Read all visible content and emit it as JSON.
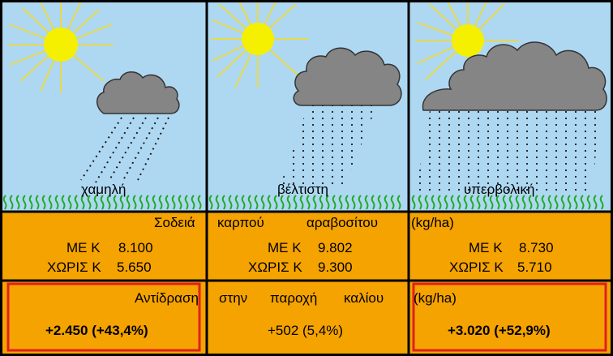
{
  "panels": [
    {
      "label": "χαμηλή",
      "with_k_label": "ΜΕ Κ",
      "with_k_value": "8.100",
      "without_k_label": "ΧΩΡΙΣ Κ",
      "without_k_value": "5.650",
      "response": "+2.450 (+43,4%)",
      "highlighted": true
    },
    {
      "label": "βέλτιστη",
      "with_k_label": "ΜΕ Κ",
      "with_k_value": "9.802",
      "without_k_label": "ΧΩΡΙΣ Κ",
      "without_k_value": "9.300",
      "response": "+502 (5,4%)",
      "highlighted": false
    },
    {
      "label": "υπερβολική",
      "with_k_label": "ΜΕ Κ",
      "with_k_value": "8.730",
      "without_k_label": "ΧΩΡΙΣ Κ",
      "without_k_value": "5.710",
      "response": "+3.020 (+52,9%)",
      "highlighted": true
    }
  ],
  "yield_header": [
    "Σοδειά",
    "καρπού",
    "αραβοσίτου",
    "(kg/ha)"
  ],
  "response_header": [
    "Αντίδραση",
    "στην",
    "παροχή",
    "καλίου",
    "(kg/ha)"
  ],
  "colors": {
    "sky": "#aed8f2",
    "sun": "#f5f000",
    "sun_rays": "#e8d84a",
    "cloud": "#858585",
    "rain": "#1a1a1a",
    "grass": "#22aa22",
    "orange_bg": "#f5a300",
    "highlight_border": "#e02020",
    "grid": "#000000"
  }
}
